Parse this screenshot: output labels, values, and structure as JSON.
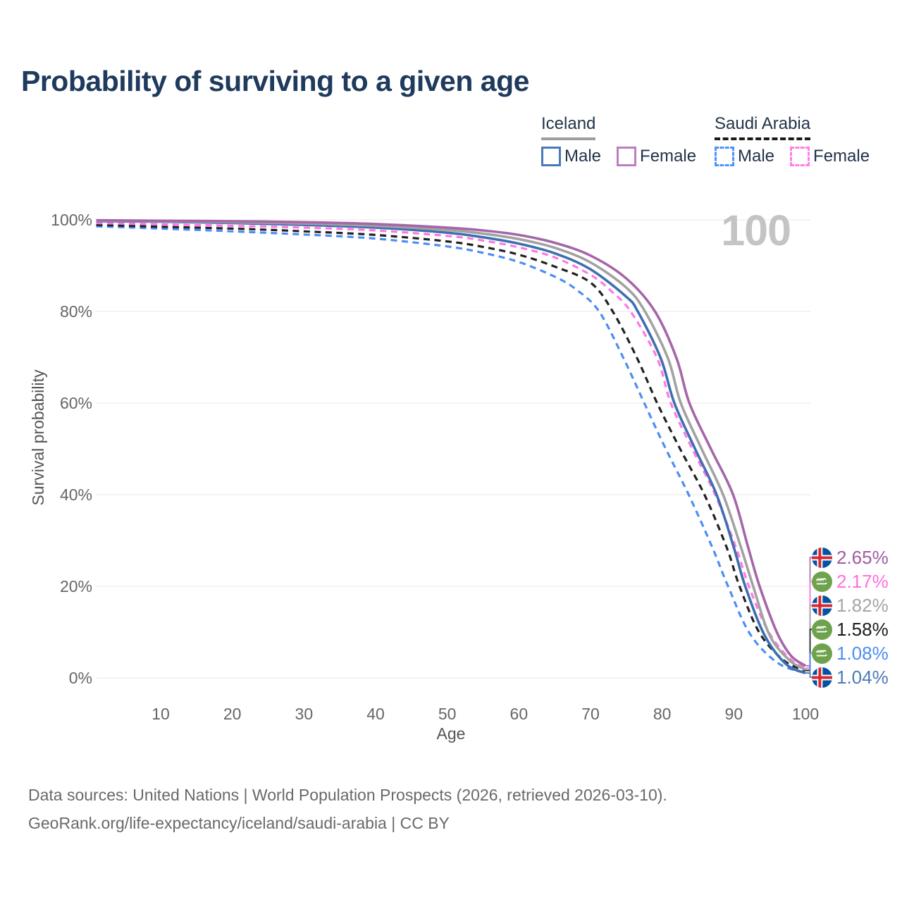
{
  "title": "Probability of surviving to a given age",
  "watermark": "100",
  "legend": {
    "groups": [
      {
        "title": "Iceland",
        "line_style": "solid",
        "underline_color": "#9e9e9e",
        "items": [
          {
            "label": "Male",
            "color": "#4a78b8"
          },
          {
            "label": "Female",
            "color": "#bf7cc2"
          }
        ]
      },
      {
        "title": "Saudi Arabia",
        "line_style": "dashed",
        "underline_color": "#1b1b1b",
        "items": [
          {
            "label": "Male",
            "color": "#4d94ff"
          },
          {
            "label": "Female",
            "color": "#ff80e6"
          }
        ]
      }
    ]
  },
  "chart_data": {
    "type": "line",
    "title": "Probability of surviving to a given age",
    "xlabel": "Age",
    "ylabel": "Survival probability",
    "xlim": [
      1,
      100
    ],
    "ylim": [
      0,
      100
    ],
    "grid": "horizontal",
    "x_ticks": [
      10,
      20,
      30,
      40,
      50,
      60,
      70,
      80,
      90,
      100
    ],
    "y_ticks": [
      {
        "label": "100%",
        "value": 100
      },
      {
        "label": "80%",
        "value": 80
      },
      {
        "label": "60%",
        "value": 60
      },
      {
        "label": "40%",
        "value": 40
      },
      {
        "label": "20%",
        "value": 20
      },
      {
        "label": "0%",
        "value": 0
      }
    ],
    "series": [
      {
        "name": "Iceland Female",
        "country": "Iceland",
        "sex": "Female",
        "flag": "iceland",
        "dashed": false,
        "color": "#a566a8",
        "end_label": "2.65%",
        "end_label_color": "#9e5ca1",
        "points": [
          [
            1,
            99.9
          ],
          [
            10,
            99.8
          ],
          [
            20,
            99.7
          ],
          [
            30,
            99.5
          ],
          [
            40,
            99.1
          ],
          [
            50,
            98.3
          ],
          [
            55,
            97.7
          ],
          [
            60,
            96.7
          ],
          [
            65,
            95.0
          ],
          [
            70,
            92.2
          ],
          [
            75,
            87.2
          ],
          [
            79,
            80
          ],
          [
            82,
            69.8
          ],
          [
            83.8,
            60
          ],
          [
            86.8,
            50
          ],
          [
            89.9,
            40
          ],
          [
            92,
            28.5
          ],
          [
            93.6,
            20
          ],
          [
            96,
            10
          ],
          [
            98,
            4.8
          ],
          [
            100,
            2.65
          ]
        ]
      },
      {
        "name": "Saudi Arabia Female",
        "country": "Saudi Arabia",
        "sex": "Female",
        "flag": "saudi",
        "dashed": true,
        "color": "#ff77e2",
        "end_label": "2.17%",
        "end_label_color": "#ff70dc",
        "points": [
          [
            1,
            99.3
          ],
          [
            10,
            99.0
          ],
          [
            20,
            98.7
          ],
          [
            30,
            98.3
          ],
          [
            40,
            97.7
          ],
          [
            50,
            96.5
          ],
          [
            55,
            95.5
          ],
          [
            60,
            94.0
          ],
          [
            65,
            91.8
          ],
          [
            70,
            88.0
          ],
          [
            73,
            84.3
          ],
          [
            75.6,
            80
          ],
          [
            79.3,
            69.8
          ],
          [
            81.2,
            60
          ],
          [
            84.2,
            50
          ],
          [
            87.4,
            40
          ],
          [
            90.3,
            28.5
          ],
          [
            92.1,
            20
          ],
          [
            94.8,
            10.2
          ],
          [
            97.8,
            4.2
          ],
          [
            100,
            2.17
          ]
        ]
      },
      {
        "name": "Iceland Total",
        "country": "Iceland",
        "sex": "Both",
        "flag": "iceland",
        "dashed": false,
        "color": "#a2a2a2",
        "end_label": "1.82%",
        "end_label_color": "#a6a6a6",
        "points": [
          [
            1,
            99.8
          ],
          [
            10,
            99.7
          ],
          [
            20,
            99.5
          ],
          [
            30,
            99.2
          ],
          [
            40,
            98.7
          ],
          [
            50,
            97.8
          ],
          [
            55,
            97.0
          ],
          [
            60,
            95.8
          ],
          [
            65,
            93.9
          ],
          [
            70,
            90.7
          ],
          [
            75,
            85.2
          ],
          [
            77.6,
            80
          ],
          [
            80.8,
            69.8
          ],
          [
            82.6,
            60
          ],
          [
            85.5,
            50
          ],
          [
            88.5,
            40
          ],
          [
            91,
            28.5
          ],
          [
            92.7,
            20
          ],
          [
            95,
            9.3
          ],
          [
            97.8,
            3.8
          ],
          [
            100,
            1.82
          ]
        ]
      },
      {
        "name": "Saudi Arabia Total",
        "country": "Saudi Arabia",
        "sex": "Both",
        "flag": "saudi",
        "dashed": true,
        "color": "#212121",
        "end_label": "1.58%",
        "end_label_color": "#1c1c1c",
        "points": [
          [
            1,
            98.9
          ],
          [
            10,
            98.5
          ],
          [
            20,
            98.1
          ],
          [
            30,
            97.5
          ],
          [
            40,
            96.7
          ],
          [
            50,
            95.3
          ],
          [
            55,
            94.1
          ],
          [
            60,
            92.4
          ],
          [
            65,
            89.8
          ],
          [
            70,
            86.3
          ],
          [
            73.1,
            80
          ],
          [
            76.5,
            69.8
          ],
          [
            79.3,
            60
          ],
          [
            82.5,
            50
          ],
          [
            85.9,
            40
          ],
          [
            89,
            28.5
          ],
          [
            90.8,
            20
          ],
          [
            93.6,
            9.8
          ],
          [
            97,
            3.8
          ],
          [
            100,
            1.58
          ]
        ]
      },
      {
        "name": "Saudi Arabia Male",
        "country": "Saudi Arabia",
        "sex": "Male",
        "flag": "saudi",
        "dashed": true,
        "color": "#4b8ef5",
        "end_label": "1.08%",
        "end_label_color": "#4b8ef5",
        "points": [
          [
            1,
            98.6
          ],
          [
            10,
            98.1
          ],
          [
            20,
            97.5
          ],
          [
            30,
            96.8
          ],
          [
            40,
            95.9
          ],
          [
            50,
            94.2
          ],
          [
            55,
            92.8
          ],
          [
            60,
            90.8
          ],
          [
            65,
            87.6
          ],
          [
            68,
            84.8
          ],
          [
            71.2,
            80
          ],
          [
            74.6,
            69.8
          ],
          [
            77.5,
            60
          ],
          [
            80.5,
            50
          ],
          [
            83.7,
            40
          ],
          [
            87,
            28.5
          ],
          [
            89.2,
            20
          ],
          [
            92.3,
            9.5
          ],
          [
            96.2,
            3.2
          ],
          [
            100,
            1.08
          ]
        ]
      },
      {
        "name": "Iceland Male",
        "country": "Iceland",
        "sex": "Male",
        "flag": "iceland",
        "dashed": false,
        "color": "#3e6fb0",
        "end_label": "1.04%",
        "end_label_color": "#4e79b6",
        "points": [
          [
            1,
            99.7
          ],
          [
            10,
            99.6
          ],
          [
            20,
            99.3
          ],
          [
            30,
            98.9
          ],
          [
            40,
            98.3
          ],
          [
            50,
            97.2
          ],
          [
            55,
            96.2
          ],
          [
            60,
            94.8
          ],
          [
            65,
            92.7
          ],
          [
            70,
            89.2
          ],
          [
            75,
            83.2
          ],
          [
            76.6,
            80
          ],
          [
            79.8,
            69.8
          ],
          [
            81.7,
            60
          ],
          [
            84.6,
            50
          ],
          [
            87.6,
            40
          ],
          [
            90,
            28.5
          ],
          [
            91.6,
            20
          ],
          [
            94.3,
            9.3
          ],
          [
            97.3,
            3.0
          ],
          [
            100,
            1.04
          ]
        ]
      }
    ]
  },
  "footer": {
    "line1": "Data sources: United Nations | World Population Prospects (2026, retrieved 2026-03-10).",
    "line2": "GeoRank.org/life-expectancy/iceland/saudi-arabia | CC BY"
  }
}
